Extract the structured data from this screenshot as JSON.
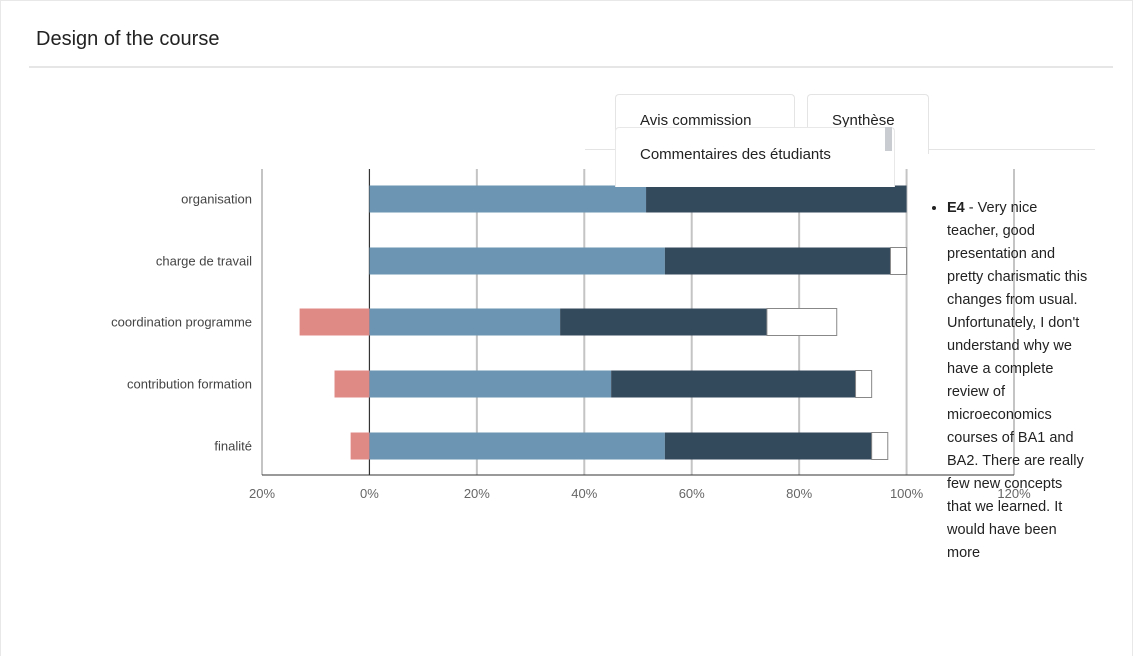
{
  "card": {
    "title": "Design of the course"
  },
  "tabs": [
    {
      "label": "Avis commission"
    },
    {
      "label": "Synthèse"
    },
    {
      "label": "Commentaires des étudiants"
    }
  ],
  "comments": [
    {
      "id": "E4",
      "text": " - Very nice teacher, good presentation and pretty charismatic this changes from usual. Unfortunately, I don't understand why we have a complete review of microeconomics courses of BA1 and BA2. There are really few new concepts that we learned. It would have been more"
    }
  ],
  "chart_data": {
    "type": "bar",
    "orientation": "horizontal",
    "stacked": true,
    "categories": [
      "organisation",
      "charge de travail",
      "coordination programme",
      "contribution formation",
      "finalité"
    ],
    "series": [
      {
        "color": "#e08a86",
        "values": [
          0,
          0,
          -13,
          -6.5,
          -3.5
        ]
      },
      {
        "color": "#6b95b3",
        "values": [
          51.5,
          55,
          35.5,
          45,
          55
        ]
      },
      {
        "color": "#33495c",
        "values": [
          48.5,
          42,
          38.5,
          45.5,
          38.5
        ]
      },
      {
        "color": "#ffffff",
        "values": [
          0,
          3,
          13,
          3,
          3
        ]
      }
    ],
    "xlim": [
      -20,
      120
    ],
    "xticks": [
      "20%",
      "0%",
      "20%",
      "40%",
      "60%",
      "80%",
      "100%",
      "120%"
    ],
    "grid": true
  }
}
